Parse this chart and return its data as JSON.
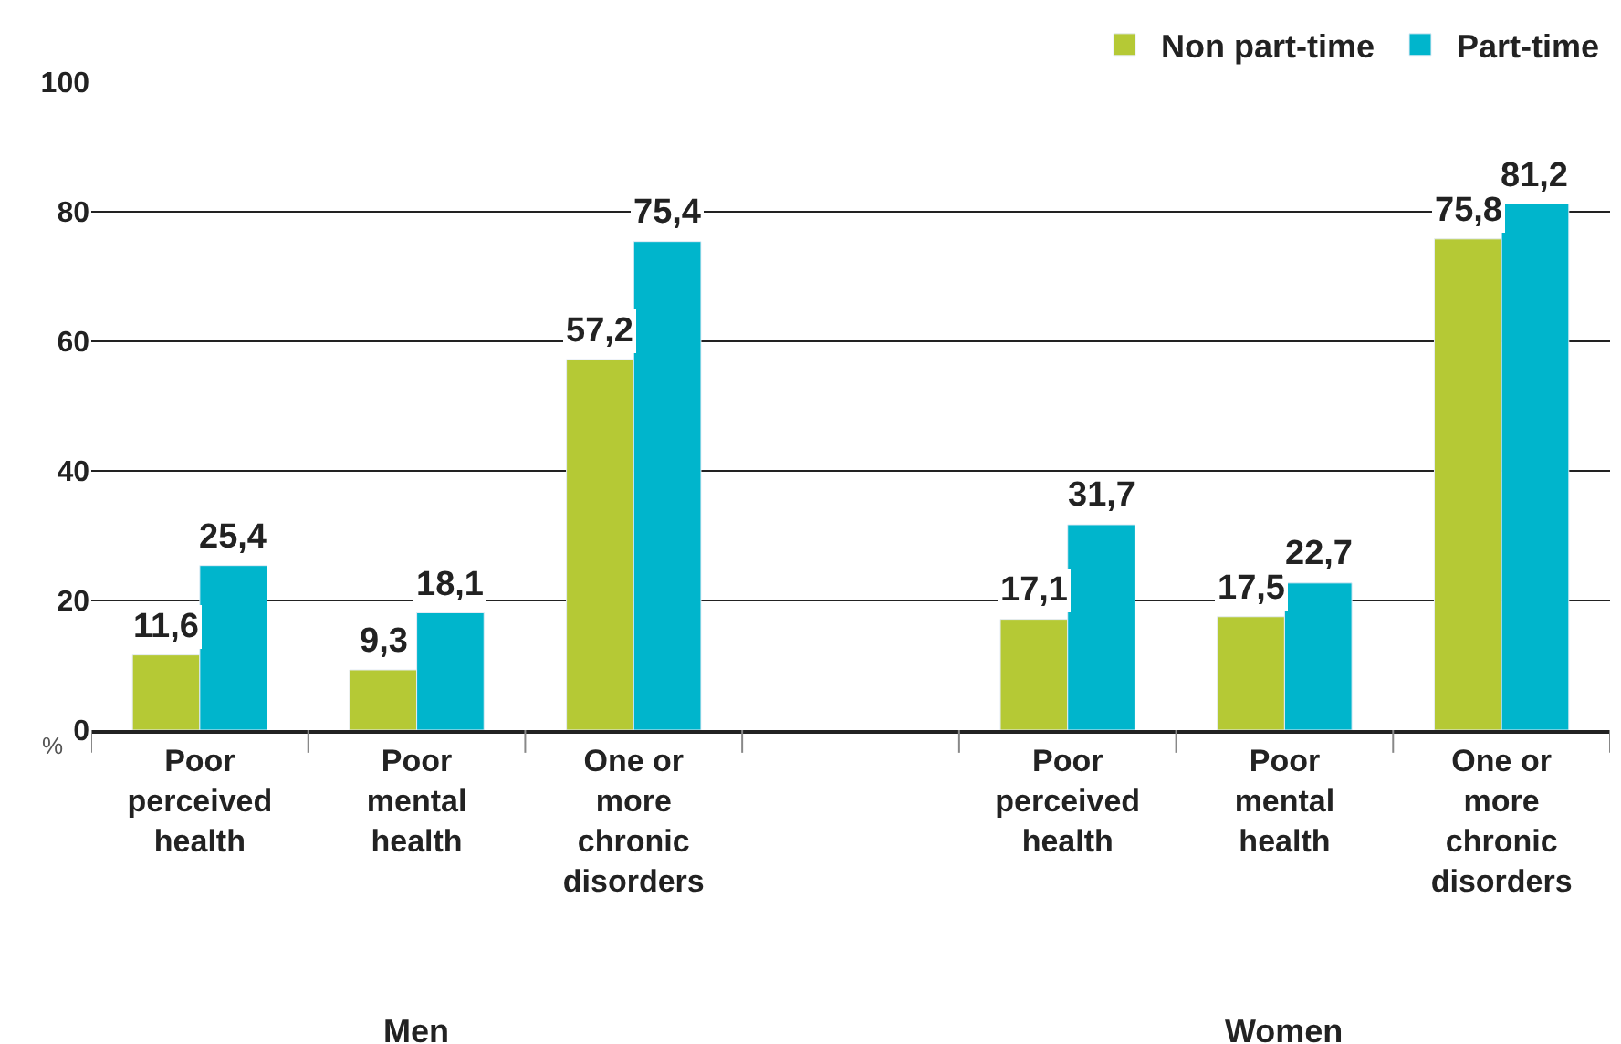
{
  "chart_data": {
    "type": "bar",
    "ylabel": "%",
    "categories": [
      "Poor\nperceived\nhealth",
      "Poor\nmental\nhealth",
      "One or\nmore\nchronic\ndisorders",
      null,
      "Poor\nperceived\nhealth",
      "Poor\nmental\nhealth",
      "One or\nmore\nchronic\ndisorders"
    ],
    "series": [
      {
        "name": "Non part-time",
        "color": "#b5c935",
        "values": [
          11.6,
          9.3,
          57.2,
          null,
          17.1,
          17.5,
          75.8
        ],
        "value_labels": [
          "11,6",
          "9,3",
          "57,2",
          null,
          "17,1",
          "17,5",
          "75,8"
        ]
      },
      {
        "name": "Part-time",
        "color": "#00b5cc",
        "values": [
          25.4,
          18.1,
          75.4,
          null,
          31.7,
          22.7,
          81.2
        ],
        "value_labels": [
          "25,4",
          "18,1",
          "75,4",
          null,
          "31,7",
          "22,7",
          "81,2"
        ]
      }
    ],
    "ylim": [
      0,
      100
    ],
    "yticks": [
      0,
      20,
      40,
      60,
      80,
      100
    ],
    "grid": "y",
    "legend": "top right",
    "annotations": [
      "Men",
      "Women"
    ]
  }
}
